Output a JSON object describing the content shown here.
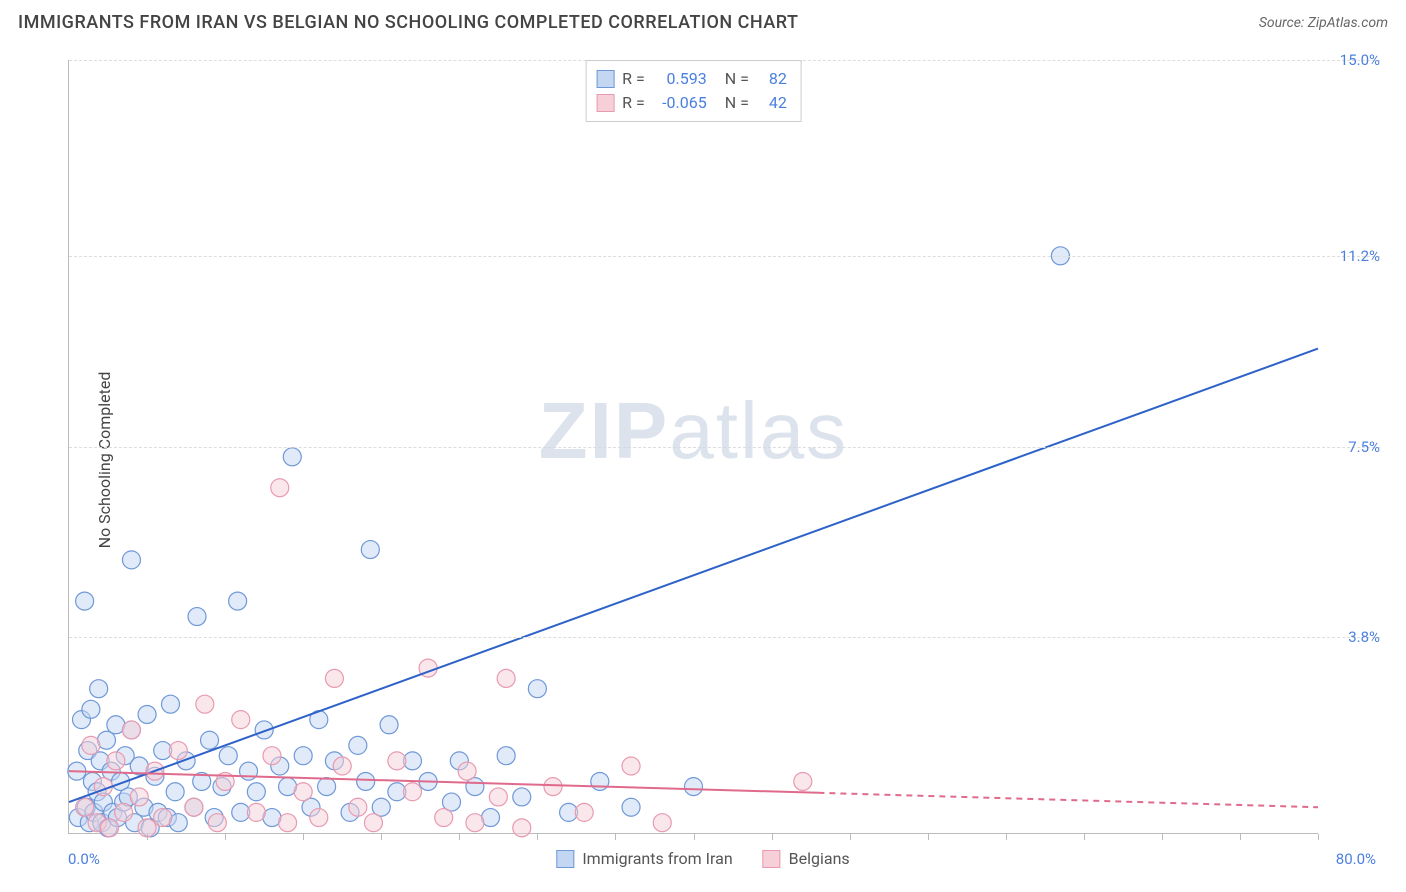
{
  "header": {
    "title": "IMMIGRANTS FROM IRAN VS BELGIAN NO SCHOOLING COMPLETED CORRELATION CHART",
    "source_prefix": "Source: ",
    "source_name": "ZipAtlas.com"
  },
  "chart": {
    "type": "scatter",
    "ylabel": "No Schooling Completed",
    "xlim": [
      0,
      80
    ],
    "ylim": [
      0,
      15
    ],
    "x_min_label": "0.0%",
    "x_max_label": "80.0%",
    "ytick_values": [
      3.8,
      7.5,
      11.2,
      15.0
    ],
    "ytick_labels": [
      "3.8%",
      "7.5%",
      "11.2%",
      "15.0%"
    ],
    "xtick_count": 16,
    "background_color": "#ffffff",
    "grid_color": "#dddddd",
    "axis_color": "#bbbbbb",
    "tick_label_color": "#4a7fe0",
    "marker_radius": 9,
    "marker_stroke_width": 1.2,
    "line_width": 2,
    "watermark": {
      "bold": "ZIP",
      "rest": "atlas",
      "color": "#cfd8e4"
    },
    "stat_legend": {
      "r_label": "R =",
      "n_label": "N =",
      "rows": [
        {
          "r": "0.593",
          "n": "82",
          "fill": "#c3d6f2",
          "stroke": "#6f98d8"
        },
        {
          "r": "-0.065",
          "n": "42",
          "fill": "#f6cfd8",
          "stroke": "#e89ab0"
        }
      ]
    },
    "series_legend": {
      "items": [
        {
          "label": "Immigrants from Iran",
          "fill": "#c3d6f2",
          "stroke": "#6f98d8"
        },
        {
          "label": "Belgians",
          "fill": "#f6cfd8",
          "stroke": "#e89ab0"
        }
      ]
    },
    "series": [
      {
        "name": "Immigrants from Iran",
        "color_fill": "#c3d6f280",
        "color_stroke": "#6f98d8",
        "trend": {
          "x1": 0,
          "y1": 0.6,
          "x2": 80,
          "y2": 9.4,
          "color": "#2d62c8",
          "dash_after_x": null
        },
        "points": [
          [
            0.5,
            1.2
          ],
          [
            0.6,
            0.3
          ],
          [
            0.8,
            2.2
          ],
          [
            1.0,
            4.5
          ],
          [
            1.1,
            0.5
          ],
          [
            1.2,
            1.6
          ],
          [
            1.3,
            0.2
          ],
          [
            1.4,
            2.4
          ],
          [
            1.5,
            1.0
          ],
          [
            1.6,
            0.4
          ],
          [
            1.8,
            0.8
          ],
          [
            1.9,
            2.8
          ],
          [
            2.0,
            1.4
          ],
          [
            2.1,
            0.2
          ],
          [
            2.2,
            0.6
          ],
          [
            2.4,
            1.8
          ],
          [
            2.5,
            0.1
          ],
          [
            2.7,
            1.2
          ],
          [
            2.8,
            0.4
          ],
          [
            3.0,
            2.1
          ],
          [
            3.1,
            0.3
          ],
          [
            3.3,
            1.0
          ],
          [
            3.5,
            0.6
          ],
          [
            3.6,
            1.5
          ],
          [
            3.8,
            0.7
          ],
          [
            4.0,
            2.0
          ],
          [
            4.0,
            5.3
          ],
          [
            4.2,
            0.2
          ],
          [
            4.5,
            1.3
          ],
          [
            4.8,
            0.5
          ],
          [
            5.0,
            2.3
          ],
          [
            5.2,
            0.1
          ],
          [
            5.5,
            1.1
          ],
          [
            5.7,
            0.4
          ],
          [
            6.0,
            1.6
          ],
          [
            6.3,
            0.3
          ],
          [
            6.5,
            2.5
          ],
          [
            6.8,
            0.8
          ],
          [
            7.0,
            0.2
          ],
          [
            7.5,
            1.4
          ],
          [
            8.0,
            0.5
          ],
          [
            8.2,
            4.2
          ],
          [
            8.5,
            1.0
          ],
          [
            9.0,
            1.8
          ],
          [
            9.3,
            0.3
          ],
          [
            9.8,
            0.9
          ],
          [
            10.2,
            1.5
          ],
          [
            10.8,
            4.5
          ],
          [
            11.0,
            0.4
          ],
          [
            11.5,
            1.2
          ],
          [
            12.0,
            0.8
          ],
          [
            12.5,
            2.0
          ],
          [
            13.0,
            0.3
          ],
          [
            13.5,
            1.3
          ],
          [
            14.0,
            0.9
          ],
          [
            14.3,
            7.3
          ],
          [
            15.0,
            1.5
          ],
          [
            15.5,
            0.5
          ],
          [
            16.0,
            2.2
          ],
          [
            16.5,
            0.9
          ],
          [
            17.0,
            1.4
          ],
          [
            18.0,
            0.4
          ],
          [
            18.5,
            1.7
          ],
          [
            19.3,
            5.5
          ],
          [
            19.0,
            1.0
          ],
          [
            20.0,
            0.5
          ],
          [
            20.5,
            2.1
          ],
          [
            21.0,
            0.8
          ],
          [
            22.0,
            1.4
          ],
          [
            23.0,
            1.0
          ],
          [
            24.5,
            0.6
          ],
          [
            25.0,
            1.4
          ],
          [
            26.0,
            0.9
          ],
          [
            27.0,
            0.3
          ],
          [
            28.0,
            1.5
          ],
          [
            29.0,
            0.7
          ],
          [
            30.0,
            2.8
          ],
          [
            32.0,
            0.4
          ],
          [
            34.0,
            1.0
          ],
          [
            36.0,
            0.5
          ],
          [
            40.0,
            0.9
          ],
          [
            63.5,
            11.2
          ]
        ]
      },
      {
        "name": "Belgians",
        "color_fill": "#f6cfd880",
        "color_stroke": "#e89ab0",
        "trend": {
          "x1": 0,
          "y1": 1.2,
          "x2": 80,
          "y2": 0.5,
          "color": "#e06a8c",
          "dash_after_x": 48
        },
        "points": [
          [
            1.0,
            0.5
          ],
          [
            1.4,
            1.7
          ],
          [
            1.8,
            0.2
          ],
          [
            2.2,
            0.9
          ],
          [
            2.6,
            0.1
          ],
          [
            3.0,
            1.4
          ],
          [
            3.5,
            0.4
          ],
          [
            4.0,
            2.0
          ],
          [
            4.5,
            0.7
          ],
          [
            5.0,
            0.1
          ],
          [
            5.5,
            1.2
          ],
          [
            6.0,
            0.3
          ],
          [
            7.0,
            1.6
          ],
          [
            8.0,
            0.5
          ],
          [
            8.7,
            2.5
          ],
          [
            9.5,
            0.2
          ],
          [
            10.0,
            1.0
          ],
          [
            11.0,
            2.2
          ],
          [
            12.0,
            0.4
          ],
          [
            13.0,
            1.5
          ],
          [
            13.5,
            6.7
          ],
          [
            14.0,
            0.2
          ],
          [
            15.0,
            0.8
          ],
          [
            16.0,
            0.3
          ],
          [
            17.0,
            3.0
          ],
          [
            17.5,
            1.3
          ],
          [
            18.5,
            0.5
          ],
          [
            19.5,
            0.2
          ],
          [
            21.0,
            1.4
          ],
          [
            22.0,
            0.8
          ],
          [
            23.0,
            3.2
          ],
          [
            24.0,
            0.3
          ],
          [
            25.5,
            1.2
          ],
          [
            26.0,
            0.2
          ],
          [
            27.5,
            0.7
          ],
          [
            28.0,
            3.0
          ],
          [
            29.0,
            0.1
          ],
          [
            31.0,
            0.9
          ],
          [
            33.0,
            0.4
          ],
          [
            36.0,
            1.3
          ],
          [
            38.0,
            0.2
          ],
          [
            47.0,
            1.0
          ]
        ]
      }
    ]
  }
}
